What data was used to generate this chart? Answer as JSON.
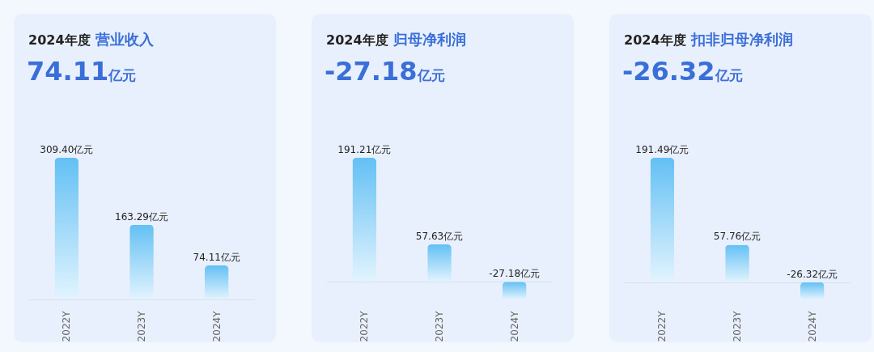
{
  "chart_data": [
    {
      "type": "bar",
      "title": "2024年度",
      "subtitle": "营业收入",
      "annotations": [
        "74.11亿元"
      ],
      "categories": [
        "2022Y",
        "2023Y",
        "2024Y"
      ],
      "values": [
        309.4,
        163.29,
        74.11
      ],
      "value_labels": [
        "309.40亿元",
        "163.29亿元",
        "74.11亿元"
      ],
      "color": "#63c0f4"
    },
    {
      "type": "bar",
      "title": "2024年度",
      "subtitle": "归母净利润",
      "annotations": [
        "-27.18亿元"
      ],
      "categories": [
        "2022Y",
        "2023Y",
        "2024Y"
      ],
      "values": [
        191.21,
        57.63,
        -27.18
      ],
      "value_labels": [
        "191.21亿元",
        "57.63亿元",
        "-27.18亿元"
      ],
      "color": "#63c0f4"
    },
    {
      "type": "bar",
      "title": "2024年度",
      "subtitle": "扣非归母净利润",
      "annotations": [
        "-26.32亿元"
      ],
      "categories": [
        "2022Y",
        "2023Y",
        "2024Y"
      ],
      "values": [
        191.49,
        57.76,
        -26.32
      ],
      "value_labels": [
        "191.49亿元",
        "57.76亿元",
        "-26.32亿元"
      ],
      "color": "#63c0f4"
    }
  ]
}
